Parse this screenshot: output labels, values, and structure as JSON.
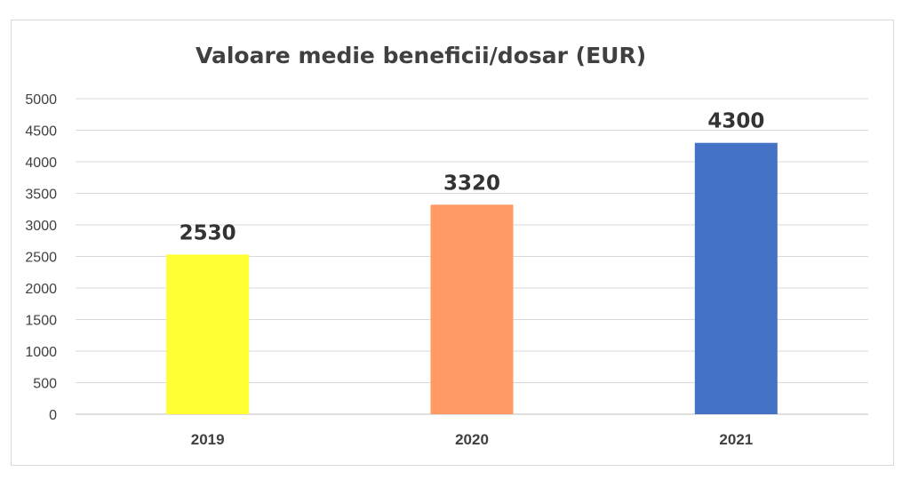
{
  "chart_data": {
    "type": "bar",
    "title": "Valoare medie beneficii/dosar (EUR)",
    "xlabel": "",
    "ylabel": "",
    "categories": [
      "2019",
      "2020",
      "2021"
    ],
    "values": [
      2530,
      3320,
      4300
    ],
    "data_labels": [
      "2530",
      "3320",
      "4300"
    ],
    "colors": [
      "#ffff33",
      "#ff9966",
      "#4472c4"
    ],
    "ylim": [
      0,
      5000
    ],
    "yticks": [
      0,
      500,
      1000,
      1500,
      2000,
      2500,
      3000,
      3500,
      4000,
      4500,
      5000
    ],
    "grid": true,
    "legend": "none"
  }
}
